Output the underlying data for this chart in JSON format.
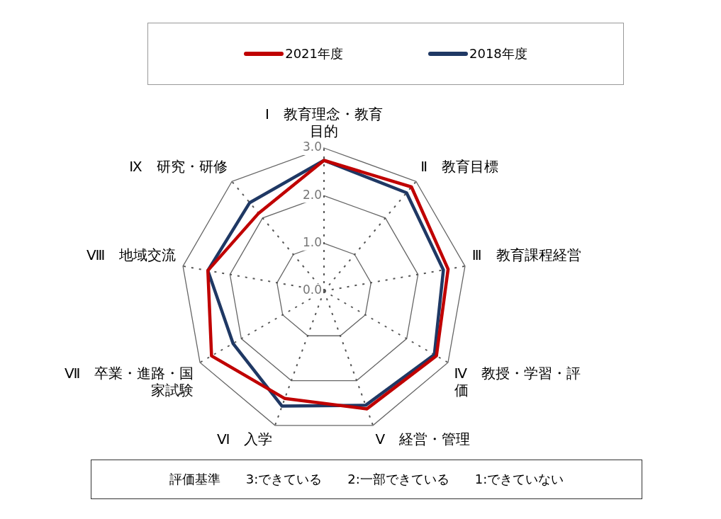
{
  "chart_data": {
    "type": "radar",
    "categories": [
      "Ⅰ　教育理念・教育目的",
      "Ⅱ　教育目標",
      "Ⅲ　教育課程経営",
      "Ⅳ　教授・学習・評価",
      "Ⅴ　経営・管理",
      "Ⅵ　入学",
      "Ⅶ　卒業・進路・国家試験",
      "Ⅷ　地域交流",
      "Ⅸ　研究・研修"
    ],
    "series": [
      {
        "name": "2021年度",
        "color": "#c00000",
        "values": [
          2.74,
          2.85,
          2.64,
          2.72,
          2.63,
          2.4,
          2.72,
          2.47,
          2.13
        ]
      },
      {
        "name": "2018年度",
        "color": "#1f3864",
        "values": [
          2.74,
          2.69,
          2.54,
          2.67,
          2.55,
          2.57,
          2.2,
          2.47,
          2.42
        ]
      }
    ],
    "ylim": [
      0,
      3
    ],
    "yticks": [
      {
        "value": 0,
        "label": "0.0"
      },
      {
        "value": 1,
        "label": "1.0"
      },
      {
        "value": 2,
        "label": "2.0"
      },
      {
        "value": 3,
        "label": "3.0"
      }
    ],
    "grid": true,
    "legend": "top",
    "marker": "none",
    "line_style": "solid",
    "annotations": [
      "評価基準　　3:できている　　2:一部できている　　1:できていない"
    ]
  }
}
